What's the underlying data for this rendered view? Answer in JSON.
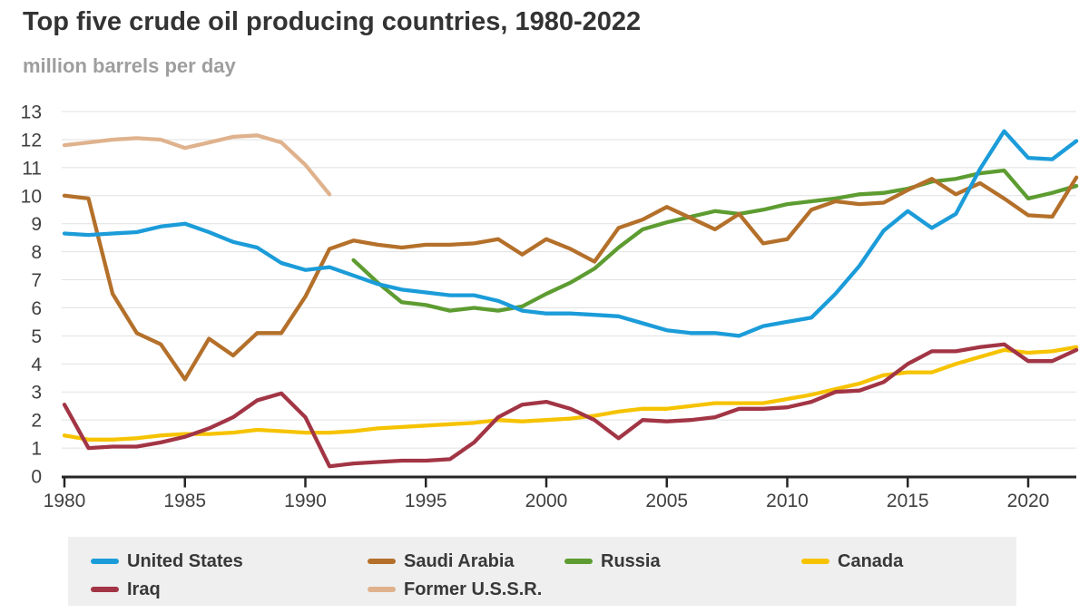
{
  "header": {
    "title": "Top five crude oil producing countries, 1980-2022",
    "subtitle": "million barrels per day"
  },
  "axis": {
    "y_tick_labels": [
      "0",
      "1",
      "2",
      "3",
      "4",
      "5",
      "6",
      "7",
      "8",
      "9",
      "10",
      "11",
      "12",
      "13"
    ],
    "x_tick_labels": [
      "1980",
      "1985",
      "1990",
      "1995",
      "2000",
      "2005",
      "2010",
      "2015",
      "2020"
    ]
  },
  "colors": {
    "united_states": "#1b9cd9",
    "saudi_arabia": "#b4702a",
    "russia": "#5d9c31",
    "canada": "#f6c300",
    "iraq": "#a23545",
    "former_ussr": "#dfb28d",
    "gridline": "#e1e1e1",
    "axis_line": "#262626",
    "tick_text": "#404040",
    "legend_bg": "#efefef"
  },
  "chart_data": {
    "type": "line",
    "title": "Top five crude oil producing countries, 1980-2022",
    "ylabel": "million barrels per day",
    "xlabel": "",
    "xlim": [
      1980,
      2022
    ],
    "ylim": [
      0,
      13
    ],
    "y_tick_step": 1,
    "x_ticks": [
      1980,
      1985,
      1990,
      1995,
      2000,
      2005,
      2010,
      2015,
      2020
    ],
    "grid": "horizontal",
    "legend_position": "bottom",
    "series": [
      {
        "name": "United States",
        "color": "#1b9cd9",
        "start_year": 1980,
        "values": [
          8.65,
          8.6,
          8.65,
          8.7,
          8.9,
          9.0,
          8.7,
          8.35,
          8.15,
          7.6,
          7.35,
          7.45,
          7.15,
          6.85,
          6.65,
          6.55,
          6.45,
          6.45,
          6.25,
          5.9,
          5.8,
          5.8,
          5.75,
          5.7,
          5.45,
          5.2,
          5.1,
          5.1,
          5.0,
          5.35,
          5.5,
          5.65,
          6.5,
          7.5,
          8.75,
          9.45,
          8.85,
          9.35,
          10.95,
          12.3,
          11.35,
          11.3,
          11.95
        ]
      },
      {
        "name": "Saudi Arabia",
        "color": "#b4702a",
        "start_year": 1980,
        "values": [
          10.0,
          9.9,
          6.5,
          5.1,
          4.7,
          3.45,
          4.9,
          4.3,
          5.1,
          5.1,
          6.4,
          8.1,
          8.4,
          8.25,
          8.15,
          8.25,
          8.25,
          8.3,
          8.45,
          7.9,
          8.45,
          8.1,
          7.65,
          8.85,
          9.15,
          9.6,
          9.2,
          8.8,
          9.35,
          8.3,
          8.45,
          9.5,
          9.8,
          9.7,
          9.75,
          10.2,
          10.6,
          10.05,
          10.45,
          9.9,
          9.3,
          9.25,
          10.65
        ]
      },
      {
        "name": "Russia",
        "color": "#5d9c31",
        "start_year": 1992,
        "values": [
          7.7,
          6.9,
          6.2,
          6.1,
          5.9,
          6.0,
          5.9,
          6.05,
          6.5,
          6.9,
          7.4,
          8.15,
          8.8,
          9.05,
          9.25,
          9.45,
          9.35,
          9.5,
          9.7,
          9.8,
          9.9,
          10.05,
          10.1,
          10.25,
          10.5,
          10.6,
          10.8,
          10.9,
          9.9,
          10.1,
          10.35
        ]
      },
      {
        "name": "Canada",
        "color": "#f6c300",
        "start_year": 1980,
        "values": [
          1.45,
          1.3,
          1.3,
          1.35,
          1.45,
          1.5,
          1.5,
          1.55,
          1.65,
          1.6,
          1.55,
          1.55,
          1.6,
          1.7,
          1.75,
          1.8,
          1.85,
          1.9,
          2.0,
          1.95,
          2.0,
          2.05,
          2.15,
          2.3,
          2.4,
          2.4,
          2.5,
          2.6,
          2.6,
          2.6,
          2.75,
          2.9,
          3.1,
          3.3,
          3.6,
          3.7,
          3.7,
          4.0,
          4.25,
          4.5,
          4.4,
          4.45,
          4.6
        ]
      },
      {
        "name": "Iraq",
        "color": "#a23545",
        "start_year": 1980,
        "values": [
          2.55,
          1.0,
          1.05,
          1.05,
          1.2,
          1.4,
          1.7,
          2.1,
          2.7,
          2.95,
          2.1,
          0.35,
          0.45,
          0.5,
          0.55,
          0.55,
          0.6,
          1.2,
          2.1,
          2.55,
          2.65,
          2.4,
          2.0,
          1.35,
          2.0,
          1.95,
          2.0,
          2.1,
          2.4,
          2.4,
          2.45,
          2.65,
          3.0,
          3.05,
          3.35,
          4.0,
          4.45,
          4.45,
          4.6,
          4.7,
          4.1,
          4.1,
          4.5
        ]
      },
      {
        "name": "Former U.S.S.R.",
        "color": "#dfb28d",
        "start_year": 1980,
        "values": [
          11.8,
          11.9,
          12.0,
          12.05,
          12.0,
          11.7,
          11.9,
          12.1,
          12.15,
          11.9,
          11.1,
          10.05
        ]
      }
    ]
  }
}
